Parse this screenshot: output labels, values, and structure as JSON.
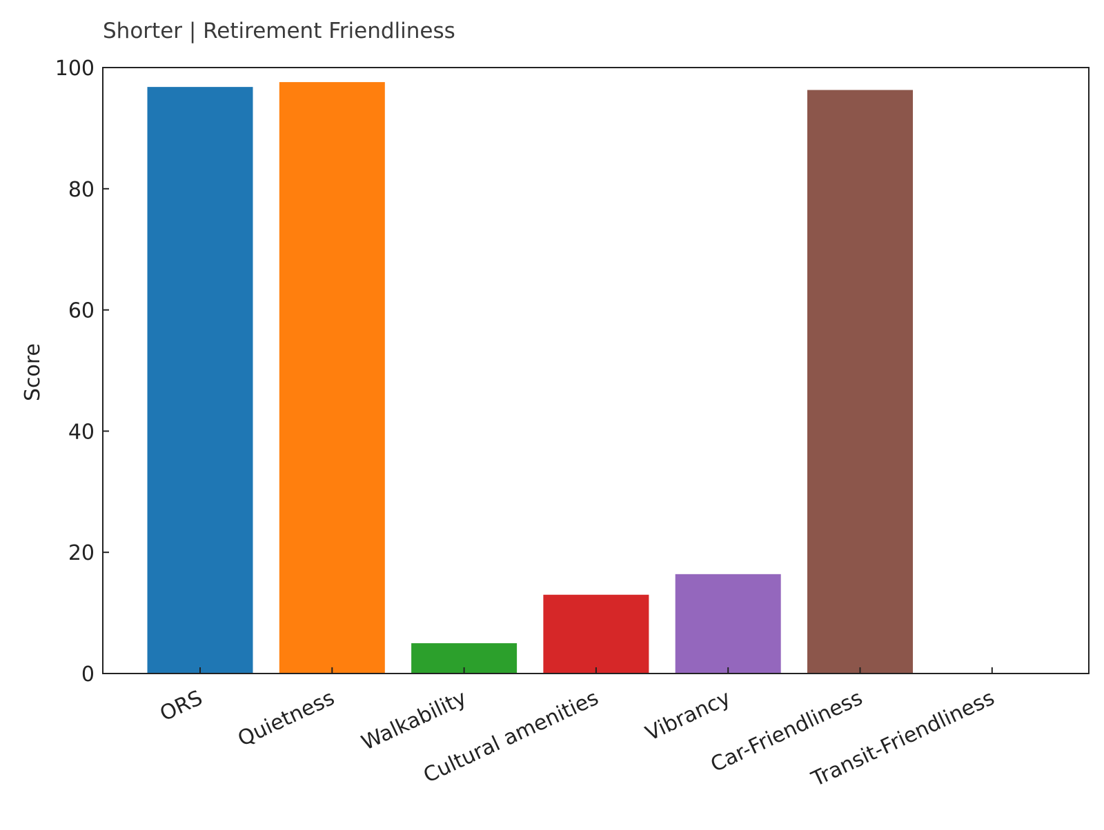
{
  "chart_data": {
    "type": "bar",
    "title": "Shorter | Retirement Friendliness",
    "xlabel": "",
    "ylabel": "Score",
    "categories": [
      "ORS",
      "Quietness",
      "Walkability",
      "Cultural amenities",
      "Vibrancy",
      "Car-Friendliness",
      "Transit-Friendliness"
    ],
    "values": [
      96.8,
      97.6,
      5.0,
      13.0,
      16.4,
      96.3,
      0
    ],
    "colors": [
      "#1f77b4",
      "#ff7f0e",
      "#2ca02c",
      "#d62728",
      "#9467bd",
      "#8c564b",
      "#e377c2"
    ],
    "ylim": [
      0,
      100
    ],
    "yticks": [
      0,
      20,
      40,
      60,
      80,
      100
    ],
    "grid": false,
    "legend": "none"
  }
}
